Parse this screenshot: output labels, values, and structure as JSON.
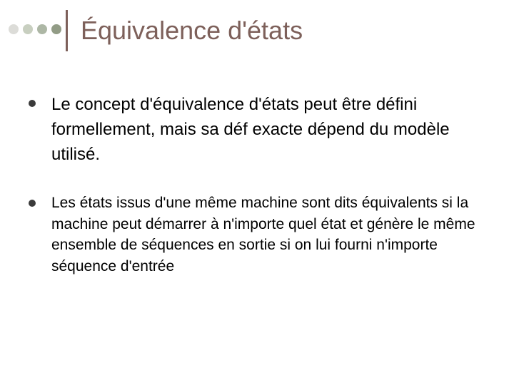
{
  "slide": {
    "title": "Équivalence d'états",
    "title_color": "#7d605a",
    "title_fontsize": 36,
    "title_bar_color": "#7d605a",
    "background_color": "#ffffff",
    "decorative_bullets": {
      "colors": [
        "#dcdcd8",
        "#c8cfc0",
        "#adb7a5",
        "#929c86"
      ],
      "diameter": 14
    },
    "bullets": [
      {
        "text": "Le concept d'équivalence d'états peut être défini formellement, mais sa déf exacte dépend du modèle utilisé.",
        "fontsize": 24,
        "bullet_color": "#3a3a3a"
      },
      {
        "text": "Les états issus d'une même machine sont dits équivalents si la machine peut démarrer à n'importe quel état et génère le même ensemble de séquences en sortie si on lui fourni n'importe séquence d'entrée",
        "fontsize": 21,
        "bullet_color": "#3a3a3a"
      }
    ]
  }
}
